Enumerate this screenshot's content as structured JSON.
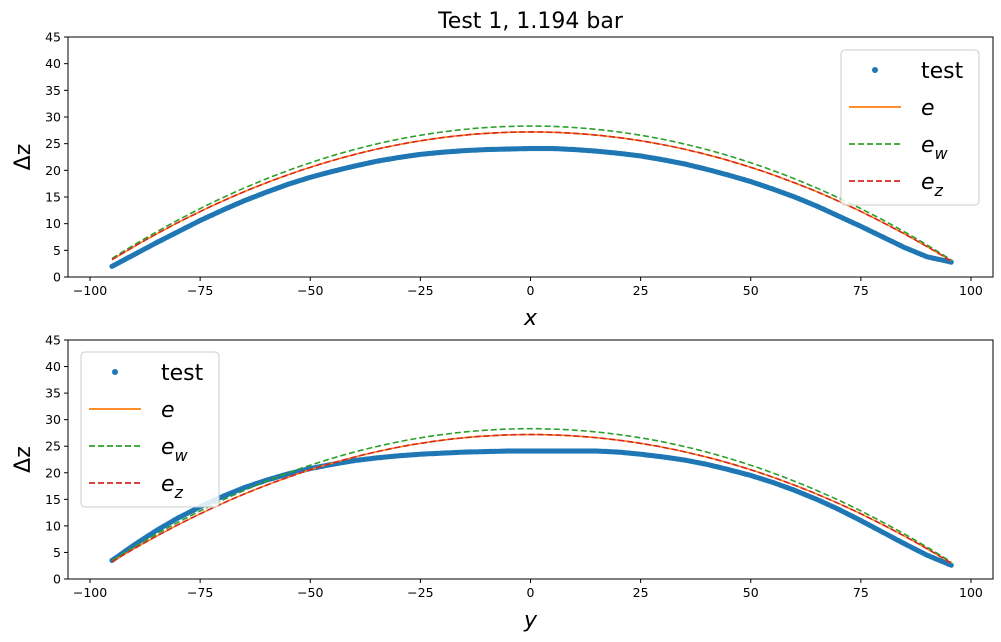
{
  "chart_data": [
    {
      "type": "line",
      "title": "Test 1, 1.194 bar",
      "xlabel": "x",
      "ylabel": "Δz",
      "xlim": [
        -105,
        105
      ],
      "ylim": [
        0,
        45
      ],
      "xticks": [
        -100,
        -75,
        -50,
        -25,
        0,
        25,
        50,
        75,
        100
      ],
      "xtick_labels": [
        "−100",
        "−75",
        "−50",
        "−25",
        "0",
        "25",
        "50",
        "75",
        "100"
      ],
      "yticks": [
        0,
        5,
        10,
        15,
        20,
        25,
        30,
        35,
        40,
        45
      ],
      "ytick_labels": [
        "0",
        "5",
        "10",
        "15",
        "20",
        "25",
        "30",
        "35",
        "40",
        "45"
      ],
      "legend_position": "top-right",
      "series": [
        {
          "name": "test",
          "style": "dots",
          "color": "#1f77b4",
          "x": [
            -95,
            -90,
            -85,
            -80,
            -75,
            -70,
            -65,
            -60,
            -55,
            -50,
            -45,
            -40,
            -35,
            -30,
            -25,
            -20,
            -15,
            -10,
            -5,
            0,
            5,
            10,
            15,
            20,
            25,
            30,
            35,
            40,
            45,
            50,
            55,
            60,
            65,
            70,
            75,
            80,
            85,
            90,
            95.5
          ],
          "y": [
            2.0,
            4.2,
            6.4,
            8.5,
            10.6,
            12.5,
            14.3,
            15.9,
            17.4,
            18.7,
            19.8,
            20.8,
            21.7,
            22.4,
            23.0,
            23.4,
            23.7,
            23.9,
            24.0,
            24.1,
            24.1,
            23.9,
            23.6,
            23.2,
            22.7,
            22.0,
            21.2,
            20.2,
            19.1,
            17.9,
            16.5,
            15.0,
            13.3,
            11.4,
            9.5,
            7.5,
            5.5,
            3.8,
            2.8
          ]
        },
        {
          "name": "e",
          "style": "solid",
          "color": "#ff7f0e",
          "apex": 27.2,
          "base": 3.0,
          "x_range": [
            -95,
            95.5
          ]
        },
        {
          "name": "e_w",
          "style": "dashed",
          "color": "#2ca02c",
          "apex": 28.3,
          "base": 3.2,
          "x_range": [
            -95,
            95.5
          ]
        },
        {
          "name": "e_z",
          "style": "dashed",
          "color": "#d62728",
          "apex": 27.2,
          "base": 3.0,
          "x_range": [
            -95,
            95.5
          ]
        }
      ]
    },
    {
      "type": "line",
      "title": "",
      "xlabel": "y",
      "ylabel": "Δz",
      "xlim": [
        -105,
        105
      ],
      "ylim": [
        0,
        45
      ],
      "xticks": [
        -100,
        -75,
        -50,
        -25,
        0,
        25,
        50,
        75,
        100
      ],
      "xtick_labels": [
        "−100",
        "−75",
        "−50",
        "−25",
        "0",
        "25",
        "50",
        "75",
        "100"
      ],
      "yticks": [
        0,
        5,
        10,
        15,
        20,
        25,
        30,
        35,
        40,
        45
      ],
      "ytick_labels": [
        "0",
        "5",
        "10",
        "15",
        "20",
        "25",
        "30",
        "35",
        "40",
        "45"
      ],
      "legend_position": "top-left",
      "series": [
        {
          "name": "test",
          "style": "dots",
          "color": "#1f77b4",
          "x": [
            -95,
            -90,
            -85,
            -80,
            -75,
            -70,
            -65,
            -60,
            -55,
            -50,
            -45,
            -40,
            -35,
            -30,
            -25,
            -20,
            -15,
            -10,
            -5,
            0,
            5,
            10,
            15,
            20,
            25,
            30,
            35,
            40,
            45,
            50,
            55,
            60,
            65,
            70,
            75,
            80,
            85,
            90,
            95.5
          ],
          "y": [
            3.5,
            6.4,
            9.1,
            11.5,
            13.6,
            15.5,
            17.2,
            18.6,
            19.8,
            20.8,
            21.6,
            22.3,
            22.8,
            23.2,
            23.5,
            23.7,
            23.9,
            24.0,
            24.1,
            24.1,
            24.1,
            24.1,
            24.1,
            23.9,
            23.5,
            23.0,
            22.4,
            21.6,
            20.6,
            19.5,
            18.2,
            16.7,
            15.0,
            13.1,
            11.0,
            8.8,
            6.6,
            4.5,
            2.6
          ]
        },
        {
          "name": "e",
          "style": "solid",
          "color": "#ff7f0e",
          "apex": 27.2,
          "base": 3.0,
          "x_range": [
            -95,
            95.5
          ]
        },
        {
          "name": "e_w",
          "style": "dashed",
          "color": "#2ca02c",
          "apex": 28.3,
          "base": 3.2,
          "x_range": [
            -95,
            95.5
          ]
        },
        {
          "name": "e_z",
          "style": "dashed",
          "color": "#d62728",
          "apex": 27.2,
          "base": 3.0,
          "x_range": [
            -95,
            95.5
          ]
        }
      ]
    }
  ]
}
